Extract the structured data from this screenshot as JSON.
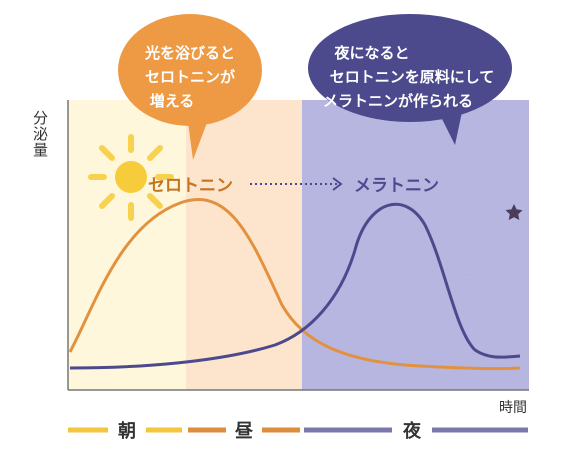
{
  "yaxis_label": "分泌量",
  "xaxis_label": "時間",
  "bubble_left": {
    "lines": [
      "光を浴びると",
      "セロトニンが",
      "増える"
    ],
    "color": "#ee9a45"
  },
  "bubble_right": {
    "lines": [
      "夜になると",
      "セロトニンを原料にして",
      "メラトニンが作られる"
    ],
    "color": "#4c4a8d"
  },
  "labels": {
    "serotonin": "セロトニン",
    "melatonin": "メラトニン"
  },
  "timeline": [
    {
      "label": "朝",
      "color": "#f4c63c"
    },
    {
      "label": "昼",
      "color": "#dd8d3c"
    },
    {
      "label": "夜",
      "color": "#7a78aa"
    }
  ],
  "colors": {
    "morning": "#fff7dc",
    "noon": "#fde5cd",
    "night": "#b7b6e0",
    "serotonin_line": "#e2923e",
    "melatonin_line": "#4c4a8d",
    "serotonin_text": "#c6731f",
    "melatonin_text": "#4c4a8d",
    "sun": "#f6cc3b",
    "moon": "#a28e91"
  },
  "icons": [
    "sun-icon",
    "moon-icon",
    "star-icon",
    "arrow-right-icon"
  ]
}
